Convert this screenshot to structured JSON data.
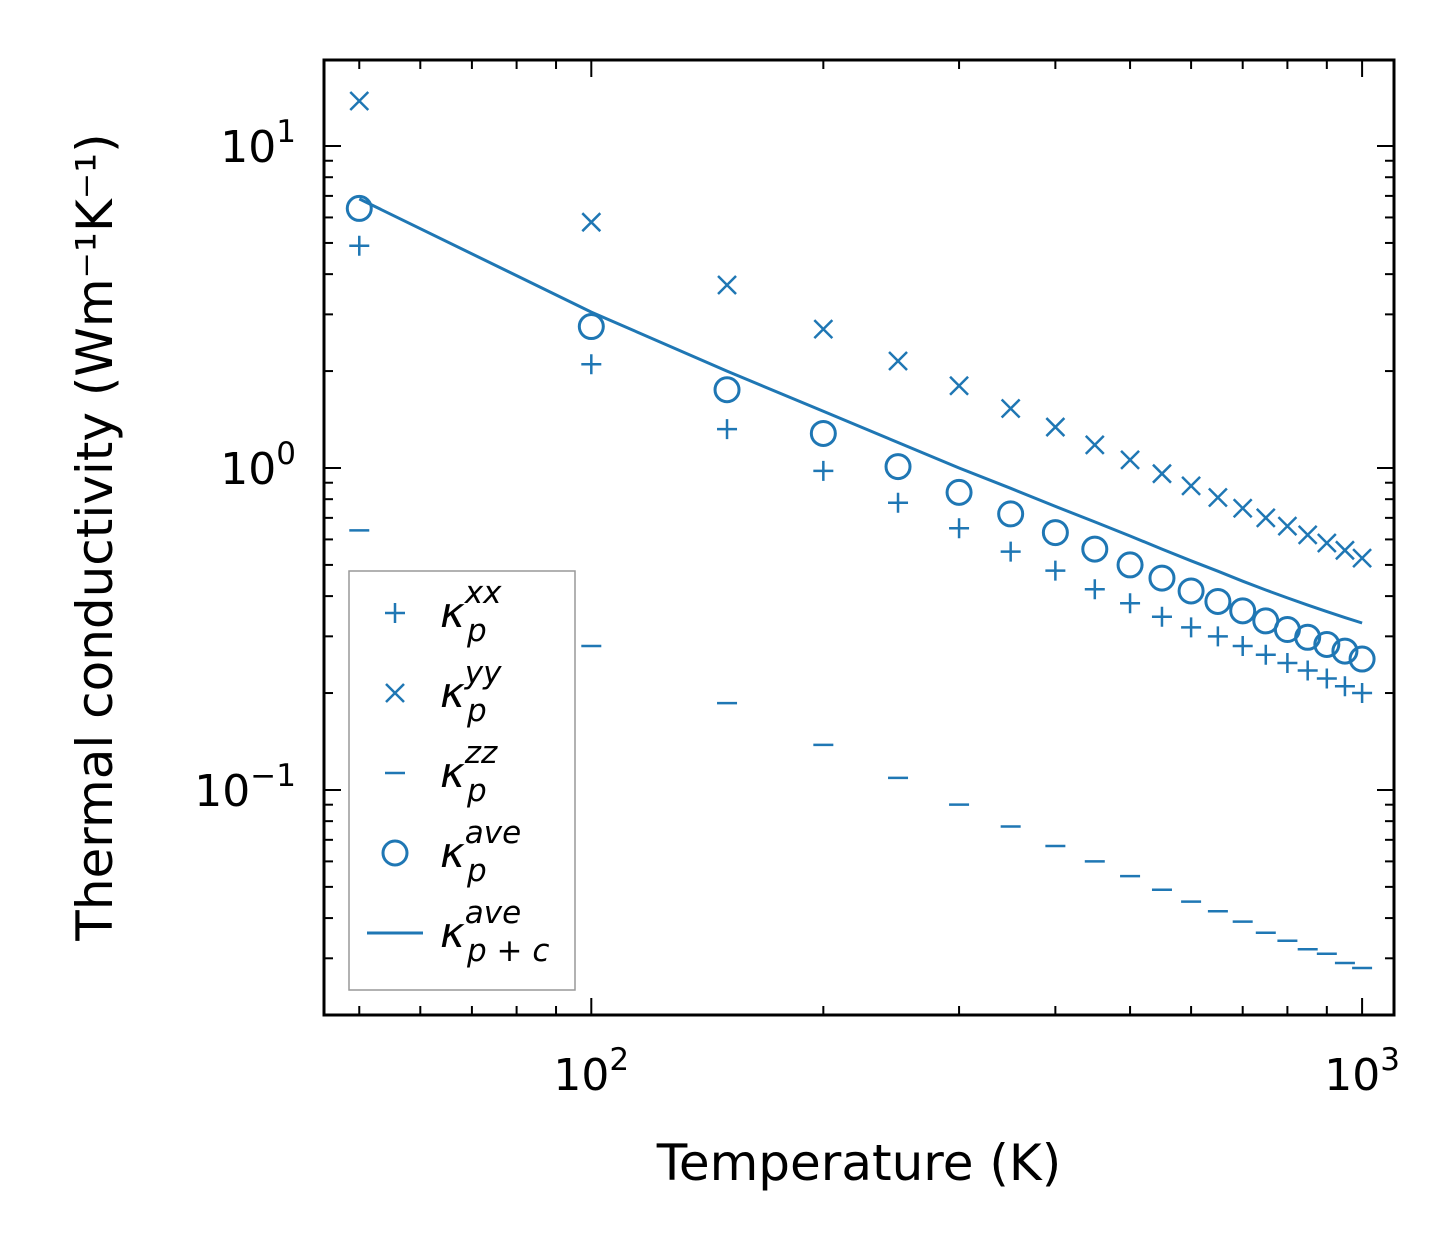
{
  "chart_data": {
    "type": "scatter",
    "title": "",
    "xlabel": "Temperature (K)",
    "ylabel": "Thermal conductivity (Wm⁻¹K⁻¹)",
    "xscale": "log",
    "yscale": "log",
    "xlim": [
      45,
      1100
    ],
    "ylim": [
      0.02,
      18.5
    ],
    "xticks": [
      {
        "value": 100,
        "base": "10",
        "exp": "2"
      },
      {
        "value": 1000,
        "base": "10",
        "exp": "3"
      }
    ],
    "yticks": [
      {
        "value": 0.1,
        "base": "10",
        "exp": "−1"
      },
      {
        "value": 1,
        "base": "10",
        "exp": "0"
      },
      {
        "value": 10,
        "base": "10",
        "exp": "1"
      }
    ],
    "legend_position": "lower-left",
    "color": "#1f77b4",
    "x": [
      50,
      100,
      150,
      200,
      250,
      300,
      350,
      400,
      450,
      500,
      550,
      600,
      650,
      700,
      750,
      800,
      850,
      900,
      950,
      1000
    ],
    "series": [
      {
        "name": "κ_p^xx",
        "base": "κ",
        "sub": "p",
        "sup": "xx",
        "marker": "plus",
        "values": [
          4.9,
          2.1,
          1.32,
          0.98,
          0.78,
          0.65,
          0.55,
          0.48,
          0.42,
          0.38,
          0.345,
          0.32,
          0.3,
          0.28,
          0.263,
          0.248,
          0.235,
          0.222,
          0.21,
          0.2
        ]
      },
      {
        "name": "κ_p^yy",
        "base": "κ",
        "sub": "p",
        "sup": "yy",
        "marker": "x",
        "values": [
          13.8,
          5.8,
          3.7,
          2.7,
          2.15,
          1.8,
          1.53,
          1.34,
          1.18,
          1.06,
          0.96,
          0.88,
          0.81,
          0.75,
          0.7,
          0.66,
          0.62,
          0.585,
          0.555,
          0.525
        ]
      },
      {
        "name": "κ_p^zz",
        "base": "κ",
        "sub": "p",
        "sup": "zz",
        "marker": "hline",
        "values": [
          0.64,
          0.28,
          0.186,
          0.138,
          0.109,
          0.09,
          0.077,
          0.067,
          0.06,
          0.054,
          0.049,
          0.045,
          0.042,
          0.039,
          0.036,
          0.034,
          0.032,
          0.031,
          0.029,
          0.028
        ]
      },
      {
        "name": "κ_p^ave",
        "base": "κ",
        "sub": "p",
        "sup": "ave",
        "marker": "circle",
        "values": [
          6.4,
          2.75,
          1.75,
          1.28,
          1.01,
          0.84,
          0.72,
          0.63,
          0.56,
          0.5,
          0.455,
          0.415,
          0.385,
          0.36,
          0.335,
          0.315,
          0.298,
          0.283,
          0.27,
          0.255
        ]
      },
      {
        "name": "κ_p+c^ave",
        "base": "κ",
        "sub": "p + c",
        "sup": "ave",
        "marker": "line",
        "values": [
          6.85,
          3.05,
          2.0,
          1.5,
          1.2,
          1.0,
          0.865,
          0.76,
          0.68,
          0.615,
          0.56,
          0.515,
          0.478,
          0.445,
          0.418,
          0.395,
          0.375,
          0.358,
          0.343,
          0.33
        ]
      }
    ]
  }
}
